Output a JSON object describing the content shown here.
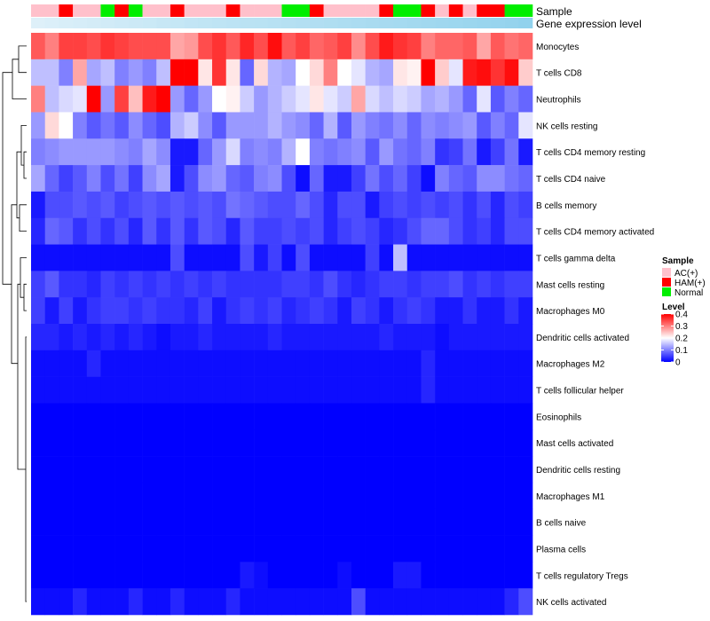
{
  "chart_data": {
    "type": "heatmap",
    "annotation_labels": {
      "sample": "Sample",
      "gene": "Gene expression level"
    },
    "sample_groups": [
      "AC(+)",
      "AC(+)",
      "HAM(+)",
      "AC(+)",
      "AC(+)",
      "Normal",
      "HAM(+)",
      "Normal",
      "AC(+)",
      "AC(+)",
      "HAM(+)",
      "AC(+)",
      "AC(+)",
      "AC(+)",
      "HAM(+)",
      "AC(+)",
      "AC(+)",
      "AC(+)",
      "Normal",
      "Normal",
      "HAM(+)",
      "AC(+)",
      "AC(+)",
      "AC(+)",
      "AC(+)",
      "HAM(+)",
      "Normal",
      "Normal",
      "HAM(+)",
      "AC(+)",
      "HAM(+)",
      "AC(+)",
      "HAM(+)",
      "HAM(+)",
      "Normal",
      "Normal"
    ],
    "gene_expression": [
      0.12,
      0.15,
      0.18,
      0.2,
      0.22,
      0.25,
      0.28,
      0.3,
      0.32,
      0.35,
      0.37,
      0.4,
      0.42,
      0.44,
      0.46,
      0.48,
      0.5,
      0.52,
      0.54,
      0.56,
      0.58,
      0.6,
      0.62,
      0.64,
      0.66,
      0.68,
      0.7,
      0.72,
      0.74,
      0.76,
      0.78,
      0.8,
      0.82,
      0.84,
      0.86,
      0.9
    ],
    "rows": [
      "Monocytes",
      "T cells CD8",
      "Neutrophils",
      "NK cells resting",
      "T cells CD4 memory resting",
      "T cells CD4 naive",
      "B cells memory",
      "T cells CD4 memory activated",
      "T cells gamma delta",
      "Mast cells resting",
      "Macrophages M0",
      "Dendritic cells activated",
      "Macrophages M2",
      "T cells follicular helper",
      "Eosinophils",
      "Mast cells activated",
      "Dendritic cells resting",
      "Macrophages M1",
      "B cells naive",
      "Plasma cells",
      "T cells regulatory  Tregs",
      "NK cells activated"
    ],
    "values": [
      [
        0.33,
        0.3,
        0.35,
        0.35,
        0.34,
        0.36,
        0.35,
        0.34,
        0.34,
        0.34,
        0.27,
        0.28,
        0.34,
        0.36,
        0.33,
        0.37,
        0.34,
        0.39,
        0.33,
        0.35,
        0.32,
        0.33,
        0.35,
        0.29,
        0.34,
        0.38,
        0.36,
        0.35,
        0.3,
        0.32,
        0.32,
        0.33,
        0.27,
        0.33,
        0.31,
        0.32
      ],
      [
        0.15,
        0.15,
        0.1,
        0.27,
        0.13,
        0.15,
        0.1,
        0.12,
        0.1,
        0.15,
        0.4,
        0.4,
        0.22,
        0.36,
        0.22,
        0.08,
        0.23,
        0.14,
        0.13,
        0.2,
        0.23,
        0.3,
        0.2,
        0.18,
        0.14,
        0.13,
        0.22,
        0.21,
        0.4,
        0.24,
        0.18,
        0.38,
        0.39,
        0.36,
        0.39,
        0.24
      ],
      [
        0.3,
        0.15,
        0.17,
        0.18,
        0.4,
        0.12,
        0.35,
        0.25,
        0.38,
        0.4,
        0.12,
        0.08,
        0.12,
        0.2,
        0.21,
        0.16,
        0.12,
        0.14,
        0.16,
        0.18,
        0.22,
        0.18,
        0.16,
        0.27,
        0.17,
        0.15,
        0.17,
        0.16,
        0.13,
        0.14,
        0.12,
        0.08,
        0.18,
        0.07,
        0.1,
        0.08
      ],
      [
        0.12,
        0.23,
        0.2,
        0.1,
        0.07,
        0.09,
        0.07,
        0.11,
        0.08,
        0.06,
        0.14,
        0.16,
        0.11,
        0.07,
        0.12,
        0.12,
        0.12,
        0.14,
        0.12,
        0.11,
        0.08,
        0.14,
        0.07,
        0.12,
        0.1,
        0.09,
        0.11,
        0.08,
        0.11,
        0.1,
        0.11,
        0.12,
        0.07,
        0.1,
        0.08,
        0.18
      ],
      [
        0.1,
        0.11,
        0.12,
        0.12,
        0.12,
        0.12,
        0.11,
        0.1,
        0.13,
        0.11,
        0.02,
        0.02,
        0.08,
        0.12,
        0.17,
        0.1,
        0.11,
        0.1,
        0.14,
        0.2,
        0.1,
        0.09,
        0.1,
        0.11,
        0.07,
        0.12,
        0.09,
        0.08,
        0.1,
        0.04,
        0.05,
        0.09,
        0.02,
        0.05,
        0.09,
        0.02
      ],
      [
        0.13,
        0.08,
        0.05,
        0.07,
        0.1,
        0.06,
        0.09,
        0.05,
        0.11,
        0.13,
        0.02,
        0.06,
        0.11,
        0.12,
        0.08,
        0.07,
        0.1,
        0.11,
        0.06,
        0.01,
        0.08,
        0.02,
        0.02,
        0.05,
        0.09,
        0.06,
        0.08,
        0.05,
        0.01,
        0.1,
        0.08,
        0.07,
        0.11,
        0.11,
        0.09,
        0.08
      ],
      [
        0.02,
        0.06,
        0.06,
        0.07,
        0.06,
        0.07,
        0.05,
        0.06,
        0.07,
        0.06,
        0.07,
        0.06,
        0.07,
        0.06,
        0.09,
        0.08,
        0.07,
        0.06,
        0.06,
        0.08,
        0.06,
        0.03,
        0.06,
        0.06,
        0.02,
        0.05,
        0.06,
        0.05,
        0.06,
        0.05,
        0.06,
        0.04,
        0.06,
        0.03,
        0.06,
        0.05
      ],
      [
        0.03,
        0.08,
        0.07,
        0.04,
        0.06,
        0.04,
        0.06,
        0.03,
        0.07,
        0.04,
        0.07,
        0.04,
        0.07,
        0.06,
        0.03,
        0.07,
        0.05,
        0.05,
        0.06,
        0.05,
        0.06,
        0.03,
        0.05,
        0.06,
        0.05,
        0.03,
        0.04,
        0.06,
        0.08,
        0.08,
        0.06,
        0.04,
        0.05,
        0.03,
        0.06,
        0.06
      ],
      [
        0.01,
        0.01,
        0.01,
        0.01,
        0.01,
        0.01,
        0.01,
        0.01,
        0.01,
        0.01,
        0.06,
        0.01,
        0.01,
        0.01,
        0.01,
        0.06,
        0.02,
        0.05,
        0.01,
        0.06,
        0.01,
        0.01,
        0.01,
        0.01,
        0.05,
        0.01,
        0.15,
        0.01,
        0.01,
        0.01,
        0.01,
        0.01,
        0.01,
        0.01,
        0.01,
        0.01
      ],
      [
        0.05,
        0.07,
        0.04,
        0.04,
        0.03,
        0.05,
        0.04,
        0.05,
        0.04,
        0.05,
        0.04,
        0.05,
        0.04,
        0.05,
        0.04,
        0.04,
        0.04,
        0.04,
        0.05,
        0.05,
        0.04,
        0.06,
        0.04,
        0.03,
        0.04,
        0.05,
        0.05,
        0.04,
        0.05,
        0.05,
        0.06,
        0.04,
        0.05,
        0.04,
        0.05,
        0.05
      ],
      [
        0.05,
        0.02,
        0.05,
        0.02,
        0.04,
        0.05,
        0.05,
        0.04,
        0.05,
        0.04,
        0.04,
        0.03,
        0.05,
        0.02,
        0.04,
        0.05,
        0.04,
        0.05,
        0.03,
        0.04,
        0.05,
        0.04,
        0.02,
        0.05,
        0.04,
        0.02,
        0.04,
        0.05,
        0.04,
        0.02,
        0.02,
        0.04,
        0.02,
        0.02,
        0.04,
        0.02
      ],
      [
        0.03,
        0.03,
        0.02,
        0.03,
        0.02,
        0.03,
        0.02,
        0.03,
        0.02,
        0.01,
        0.02,
        0.02,
        0.03,
        0.02,
        0.02,
        0.02,
        0.02,
        0.03,
        0.02,
        0.02,
        0.02,
        0.02,
        0.02,
        0.02,
        0.02,
        0.03,
        0.02,
        0.02,
        0.02,
        0.01,
        0.02,
        0.02,
        0.02,
        0.02,
        0.02,
        0.02
      ],
      [
        0.01,
        0.01,
        0.01,
        0.01,
        0.03,
        0.01,
        0.01,
        0.01,
        0.01,
        0.01,
        0.01,
        0.01,
        0.01,
        0.01,
        0.01,
        0.01,
        0.01,
        0.01,
        0.01,
        0.01,
        0.01,
        0.01,
        0.01,
        0.01,
        0.01,
        0.01,
        0.01,
        0.01,
        0.03,
        0.01,
        0.01,
        0.01,
        0.01,
        0.01,
        0.01,
        0.01
      ],
      [
        0.01,
        0.01,
        0.01,
        0.01,
        0.01,
        0.01,
        0.01,
        0.01,
        0.01,
        0.01,
        0.01,
        0.01,
        0.01,
        0.01,
        0.01,
        0.01,
        0.01,
        0.01,
        0.01,
        0.01,
        0.01,
        0.01,
        0.01,
        0.01,
        0.01,
        0.01,
        0.01,
        0.01,
        0.03,
        0.01,
        0.01,
        0.01,
        0.01,
        0.01,
        0.01,
        0.01
      ],
      [
        0.0,
        0.0,
        0.0,
        0.0,
        0.0,
        0.0,
        0.0,
        0.0,
        0.0,
        0.0,
        0.0,
        0.0,
        0.0,
        0.0,
        0.0,
        0.0,
        0.0,
        0.0,
        0.0,
        0.0,
        0.0,
        0.0,
        0.0,
        0.0,
        0.0,
        0.0,
        0.0,
        0.0,
        0.0,
        0.0,
        0.0,
        0.0,
        0.0,
        0.0,
        0.0,
        0.0
      ],
      [
        0.0,
        0.0,
        0.0,
        0.0,
        0.0,
        0.0,
        0.0,
        0.0,
        0.0,
        0.0,
        0.0,
        0.0,
        0.0,
        0.0,
        0.0,
        0.0,
        0.0,
        0.0,
        0.0,
        0.0,
        0.0,
        0.0,
        0.0,
        0.0,
        0.0,
        0.0,
        0.0,
        0.0,
        0.0,
        0.0,
        0.0,
        0.0,
        0.0,
        0.0,
        0.0,
        0.0
      ],
      [
        0.0,
        0.0,
        0.0,
        0.0,
        0.0,
        0.0,
        0.0,
        0.0,
        0.0,
        0.0,
        0.0,
        0.0,
        0.0,
        0.0,
        0.0,
        0.0,
        0.0,
        0.0,
        0.0,
        0.0,
        0.0,
        0.0,
        0.0,
        0.0,
        0.0,
        0.0,
        0.0,
        0.0,
        0.0,
        0.0,
        0.0,
        0.0,
        0.0,
        0.0,
        0.0,
        0.0
      ],
      [
        0.0,
        0.0,
        0.0,
        0.0,
        0.0,
        0.0,
        0.0,
        0.0,
        0.0,
        0.0,
        0.0,
        0.0,
        0.0,
        0.0,
        0.0,
        0.0,
        0.0,
        0.0,
        0.0,
        0.0,
        0.0,
        0.0,
        0.0,
        0.0,
        0.0,
        0.0,
        0.0,
        0.0,
        0.0,
        0.0,
        0.0,
        0.0,
        0.0,
        0.0,
        0.0,
        0.0
      ],
      [
        0.0,
        0.0,
        0.0,
        0.0,
        0.0,
        0.0,
        0.0,
        0.0,
        0.0,
        0.0,
        0.0,
        0.0,
        0.0,
        0.0,
        0.0,
        0.0,
        0.0,
        0.0,
        0.0,
        0.0,
        0.0,
        0.0,
        0.0,
        0.0,
        0.0,
        0.0,
        0.0,
        0.0,
        0.0,
        0.0,
        0.0,
        0.0,
        0.0,
        0.0,
        0.0,
        0.0
      ],
      [
        0.0,
        0.0,
        0.0,
        0.0,
        0.0,
        0.0,
        0.0,
        0.0,
        0.0,
        0.0,
        0.0,
        0.0,
        0.0,
        0.0,
        0.0,
        0.0,
        0.0,
        0.0,
        0.0,
        0.0,
        0.0,
        0.0,
        0.0,
        0.0,
        0.0,
        0.0,
        0.0,
        0.0,
        0.0,
        0.0,
        0.0,
        0.0,
        0.0,
        0.0,
        0.0,
        0.0
      ],
      [
        0.0,
        0.0,
        0.0,
        0.0,
        0.0,
        0.0,
        0.0,
        0.0,
        0.0,
        0.0,
        0.0,
        0.0,
        0.0,
        0.0,
        0.0,
        0.02,
        0.01,
        0.0,
        0.0,
        0.0,
        0.0,
        0.0,
        0.01,
        0.0,
        0.0,
        0.0,
        0.02,
        0.02,
        0.0,
        0.0,
        0.0,
        0.0,
        0.0,
        0.0,
        0.0,
        0.0
      ],
      [
        0.01,
        0.01,
        0.01,
        0.03,
        0.01,
        0.01,
        0.01,
        0.03,
        0.01,
        0.01,
        0.03,
        0.01,
        0.01,
        0.01,
        0.03,
        0.01,
        0.01,
        0.01,
        0.01,
        0.01,
        0.01,
        0.01,
        0.01,
        0.06,
        0.01,
        0.01,
        0.01,
        0.01,
        0.01,
        0.01,
        0.01,
        0.01,
        0.01,
        0.01,
        0.03,
        0.06
      ]
    ],
    "legend_sample": {
      "title": "Sample",
      "entries": [
        {
          "label": "AC(+)",
          "color": "#FFC0CB"
        },
        {
          "label": "HAM(+)",
          "color": "#FF0000"
        },
        {
          "label": "Normal",
          "color": "#00EE00"
        }
      ]
    },
    "legend_level": {
      "title": "Level",
      "ticks": [
        "0.4",
        "0.3",
        "0.2",
        "0.1",
        "0"
      ],
      "min": 0,
      "max": 0.4
    },
    "colors": {
      "low": "#0000FF",
      "mid": "#FFFFFF",
      "high": "#FF0000",
      "gene_low": "#EAF5FB",
      "gene_high": "#87CEEB"
    }
  }
}
